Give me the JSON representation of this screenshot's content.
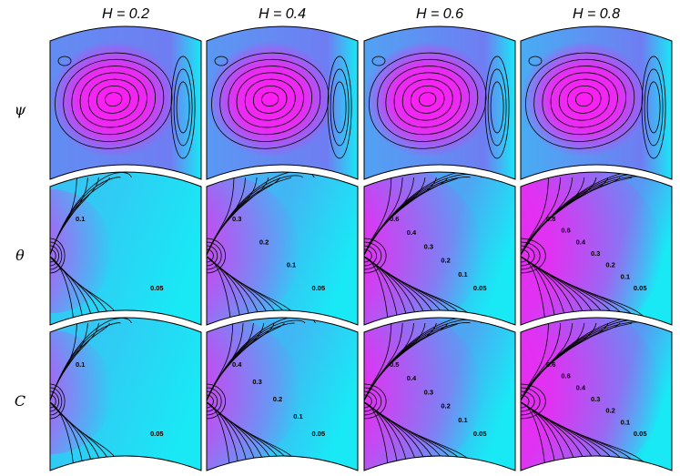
{
  "figure": {
    "columns": [
      {
        "label": "H = 0.2"
      },
      {
        "label": "H = 0.4"
      },
      {
        "label": "H = 0.6"
      },
      {
        "label": "H = 0.8"
      }
    ],
    "rows": [
      {
        "symbol": "ψ",
        "kind": "psi"
      },
      {
        "symbol": "θ",
        "kind": "theta"
      },
      {
        "symbol": "C",
        "kind": "conc"
      }
    ],
    "colors": {
      "low": "#19e8f5",
      "mid": "#6f7df2",
      "high": "#ff1cf2",
      "line": "#000000"
    },
    "contour_labels": {
      "theta": [
        [
          "0.1",
          "0.05"
        ],
        [
          "0.3",
          "0.2",
          "0.1",
          "0.05"
        ],
        [
          "0.6",
          "0.4",
          "0.3",
          "0.2",
          "0.1",
          "0.05"
        ],
        [
          "0.8",
          "0.6",
          "0.4",
          "0.3",
          "0.2",
          "0.1",
          "0.05"
        ]
      ],
      "conc": [
        [
          "0.1",
          "0.05"
        ],
        [
          "0.4",
          "0.3",
          "0.2",
          "0.1",
          "0.05"
        ],
        [
          "0.5",
          "0.4",
          "0.3",
          "0.2",
          "0.1",
          "0.05"
        ],
        [
          "0.6",
          "0.6",
          "0.4",
          "0.3",
          "0.2",
          "0.1",
          "0.05"
        ]
      ]
    },
    "hot_strength": [
      0.22,
      0.5,
      0.72,
      0.92
    ]
  }
}
